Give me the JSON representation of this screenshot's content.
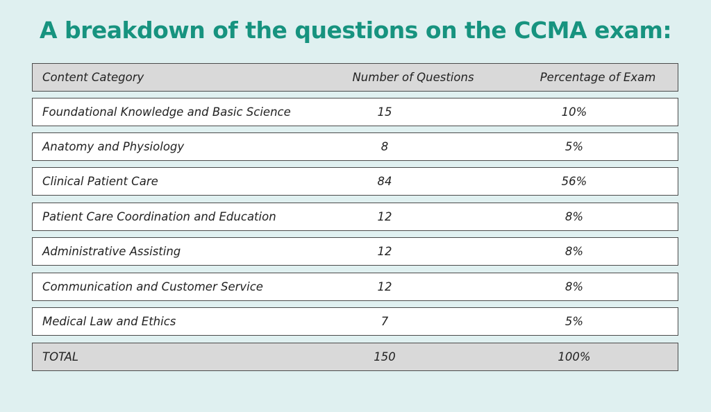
{
  "header": {
    "title": "A breakdown of the questions on the CCMA exam:"
  },
  "table": {
    "columns": [
      "Content Category",
      "Number of Questions",
      "Percentage of Exam"
    ],
    "rows": [
      [
        "Foundational Knowledge and Basic Science",
        15,
        "10%"
      ],
      [
        "Anatomy and Physiology",
        8,
        "5%"
      ],
      [
        "Clinical Patient Care",
        84,
        "56%"
      ],
      [
        "Patient Care Coordination and Education",
        12,
        "8%"
      ],
      [
        "Administrative Assisting",
        12,
        "8%"
      ],
      [
        "Communication and Customer Service",
        12,
        "8%"
      ],
      [
        "Medical Law and Ethics",
        7,
        "5%"
      ]
    ],
    "total": [
      "TOTAL",
      150,
      "100%"
    ]
  }
}
